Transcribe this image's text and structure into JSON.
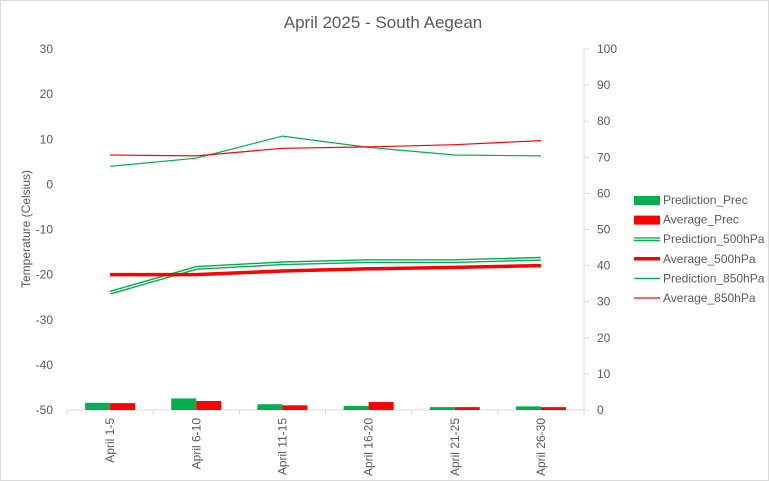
{
  "chart_data": {
    "type": "bar",
    "title": "April 2025 - South Aegean",
    "ylabel": "Temperature (Celsius)",
    "ylim": [
      -50,
      30
    ],
    "y2lim": [
      0,
      100
    ],
    "yticks": [
      "30",
      "20",
      "10",
      "0",
      "-10",
      "-20",
      "-30",
      "-40",
      "-50"
    ],
    "y2ticks": [
      "100",
      "90",
      "80",
      "70",
      "60",
      "50",
      "40",
      "30",
      "20",
      "10",
      "0"
    ],
    "categories": [
      "April 1-5",
      "April 6-10",
      "April 11-15",
      "April 16-20",
      "April 21-25",
      "April 26-30"
    ],
    "grid": false,
    "legend_position": "right",
    "series": [
      {
        "name": "Prediction_Prec",
        "type": "bar",
        "axis": "right",
        "color": "#00b050",
        "values": [
          2.0,
          3.2,
          1.6,
          1.1,
          0.8,
          1.0
        ]
      },
      {
        "name": "Average_Prec",
        "type": "bar",
        "axis": "right",
        "color": "#ff0000",
        "values": [
          1.9,
          2.5,
          1.3,
          2.2,
          0.8,
          0.8
        ]
      },
      {
        "name": "Prediction_500hPa",
        "type": "line",
        "style": "double",
        "axis": "left",
        "color": "#00b050",
        "values": [
          -24,
          -18.5,
          -17.5,
          -17,
          -17,
          -16.5
        ]
      },
      {
        "name": "Average_500hPa",
        "type": "line",
        "style": "thick",
        "axis": "left",
        "color": "#ff0000",
        "values": [
          -20,
          -20,
          -19.2,
          -18.7,
          -18.4,
          -18
        ]
      },
      {
        "name": "Prediction_850hPa",
        "type": "line",
        "style": "thin",
        "axis": "left",
        "color": "#00b050",
        "values": [
          4,
          5.8,
          10.7,
          8.2,
          6.5,
          6.3
        ]
      },
      {
        "name": "Average_850hPa",
        "type": "line",
        "style": "thin",
        "axis": "left",
        "color": "#ff0000",
        "values": [
          6.5,
          6.3,
          8.0,
          8.3,
          8.8,
          9.7
        ]
      }
    ]
  }
}
